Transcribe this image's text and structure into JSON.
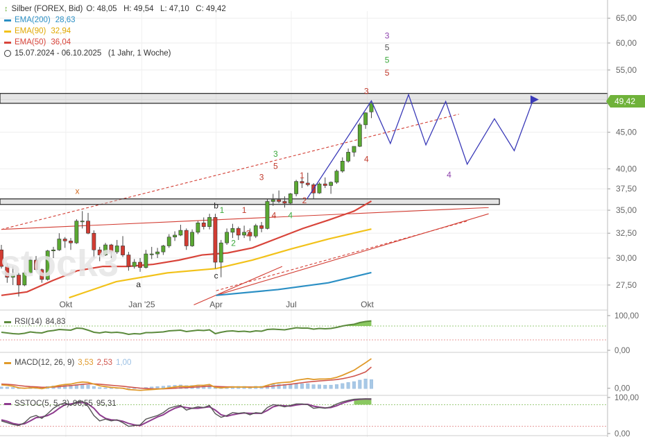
{
  "header": {
    "instrument": "Silber (FOREX, Bid)",
    "ohlc": "O: 48,05   H: 49,54   L: 47,10   C: 49,42",
    "ema200_label": "EMA(200)",
    "ema200_value": "28,63",
    "ema90_label": "EMA(90)",
    "ema90_value": "32,94",
    "ema50_label": "EMA(50)",
    "ema50_value": "36,04",
    "period": "15.07.2024 - 06.10.2025   (1 Jahr, 1 Woche)"
  },
  "current_price_tag": "49,42",
  "watermark": "stock3",
  "colors": {
    "up": "#5aa832",
    "down": "#d23c32",
    "ema200": "#2b8fc4",
    "ema90": "#f2c21a",
    "ema50": "#d8443a",
    "projection": "#3a3ab8",
    "rsi": "#5b8a3c",
    "macd": "#e09a2a",
    "signal": "#d0554c",
    "hist": "#a8c8e6",
    "stoch_k": "#555",
    "stoch_d": "#8e3c8e"
  },
  "axes": {
    "price_ticks": [
      "65,00",
      "60,00",
      "55,00",
      "50,00",
      "45,00",
      "40,00",
      "37,50",
      "35,00",
      "32,50",
      "30,00",
      "27,50"
    ],
    "x_ticks": [
      "Okt",
      "Jan '25",
      "Apr",
      "Jul",
      "Okt"
    ],
    "rsi_ticks": [
      "100,00",
      "0,00"
    ],
    "macd_ticks": [
      "0,00"
    ],
    "stoch_ticks": [
      "100,00",
      "0,00"
    ]
  },
  "indicators": {
    "rsi": {
      "label": "RSI(14)",
      "value": "84,83"
    },
    "macd": {
      "label": "MACD(12, 26, 9)",
      "v1": "3,53",
      "v2": "2,53",
      "v3": "1,00"
    },
    "stoch": {
      "label": "SSTOC(5, 5, 3)",
      "v1": "96,55",
      "v2": "95,31"
    }
  },
  "annotations": [
    {
      "text": "x",
      "x": "2024-10-15",
      "y": 36.9,
      "color": "#d2691e"
    },
    {
      "text": "b",
      "x": "2025-04-01",
      "y": 35.2,
      "color": "#222"
    },
    {
      "text": "a",
      "x": "2024-12-28",
      "y": 27.3,
      "color": "#222"
    },
    {
      "text": "c",
      "x": "2025-04-01",
      "y": 28.1,
      "color": "#222"
    },
    {
      "text": "1",
      "x": "2025-04-08",
      "y": 34.7,
      "color": "#3aa83a"
    },
    {
      "text": "2",
      "x": "2025-04-22",
      "y": 31.2,
      "color": "#3aa83a"
    },
    {
      "text": "3",
      "x": "2025-05-26",
      "y": 38.6,
      "color": "#c0392b"
    },
    {
      "text": "1",
      "x": "2025-05-05",
      "y": 34.7,
      "color": "#c0392b"
    },
    {
      "text": "2",
      "x": "2025-05-10",
      "y": 32.2,
      "color": "#c0392b"
    },
    {
      "text": "4",
      "x": "2025-06-10",
      "y": 34.1,
      "color": "#c0392b"
    },
    {
      "text": "5",
      "x": "2025-06-12",
      "y": 40.0,
      "color": "#c0392b"
    },
    {
      "text": "3",
      "x": "2025-06-12",
      "y": 41.6,
      "color": "#3aa83a"
    },
    {
      "text": "4",
      "x": "2025-06-30",
      "y": 34.1,
      "color": "#3aa83a"
    },
    {
      "text": "1",
      "x": "2025-07-14",
      "y": 38.8,
      "color": "#c0392b"
    },
    {
      "text": "2",
      "x": "2025-07-17",
      "y": 35.8,
      "color": "#c0392b"
    },
    {
      "text": "4",
      "x": "2025-09-30",
      "y": 40.9,
      "color": "#c0392b"
    },
    {
      "text": "3",
      "x": "2025-09-30",
      "y": 50.9,
      "color": "#c0392b"
    },
    {
      "text": "5",
      "x": "2025-10-25",
      "y": 54.0,
      "color": "#c0392b"
    },
    {
      "text": "5",
      "x": "2025-10-25",
      "y": 56.3,
      "color": "#3aa83a"
    },
    {
      "text": "5",
      "x": "2025-10-25",
      "y": 58.6,
      "color": "#555"
    },
    {
      "text": "3",
      "x": "2025-10-25",
      "y": 60.9,
      "color": "#8e44ad"
    },
    {
      "text": "4",
      "x": "2026-01-08",
      "y": 38.9,
      "color": "#8e44ad"
    }
  ],
  "chart_data": {
    "type": "candlestick",
    "title": "Silber (FOREX, Bid)",
    "y_scale": "log",
    "ylim": [
      26.0,
      66.5
    ],
    "x_range": [
      "2024-07-15",
      "2026-03-15"
    ],
    "candles": [
      {
        "d": "2024-07-15",
        "o": 30.8,
        "h": 31.3,
        "l": 29.0,
        "c": 29.2
      },
      {
        "d": "2024-07-22",
        "o": 29.2,
        "h": 29.5,
        "l": 27.7,
        "c": 28.2
      },
      {
        "d": "2024-07-29",
        "o": 28.2,
        "h": 29.2,
        "l": 27.5,
        "c": 28.4
      },
      {
        "d": "2024-08-05",
        "o": 28.4,
        "h": 28.6,
        "l": 26.5,
        "c": 27.5
      },
      {
        "d": "2024-08-12",
        "o": 27.5,
        "h": 28.8,
        "l": 27.4,
        "c": 28.6
      },
      {
        "d": "2024-08-19",
        "o": 28.6,
        "h": 30.1,
        "l": 28.5,
        "c": 29.8
      },
      {
        "d": "2024-08-26",
        "o": 29.8,
        "h": 30.2,
        "l": 28.8,
        "c": 28.9
      },
      {
        "d": "2024-09-02",
        "o": 28.9,
        "h": 29.0,
        "l": 27.7,
        "c": 28.0
      },
      {
        "d": "2024-09-09",
        "o": 28.0,
        "h": 30.8,
        "l": 27.9,
        "c": 30.7
      },
      {
        "d": "2024-09-16",
        "o": 30.7,
        "h": 31.1,
        "l": 30.0,
        "c": 30.8
      },
      {
        "d": "2024-09-23",
        "o": 30.8,
        "h": 32.5,
        "l": 30.7,
        "c": 31.9
      },
      {
        "d": "2024-09-30",
        "o": 31.9,
        "h": 32.1,
        "l": 31.0,
        "c": 31.7
      },
      {
        "d": "2024-10-07",
        "o": 31.7,
        "h": 32.0,
        "l": 30.8,
        "c": 31.5
      },
      {
        "d": "2024-10-14",
        "o": 31.5,
        "h": 34.0,
        "l": 31.4,
        "c": 33.8
      },
      {
        "d": "2024-10-21",
        "o": 33.8,
        "h": 34.9,
        "l": 33.0,
        "c": 33.8
      },
      {
        "d": "2024-10-28",
        "o": 33.8,
        "h": 34.7,
        "l": 32.4,
        "c": 32.5
      },
      {
        "d": "2024-11-04",
        "o": 32.5,
        "h": 32.8,
        "l": 30.0,
        "c": 30.8
      },
      {
        "d": "2024-11-11",
        "o": 30.8,
        "h": 31.1,
        "l": 29.7,
        "c": 30.3
      },
      {
        "d": "2024-11-18",
        "o": 30.3,
        "h": 31.5,
        "l": 30.2,
        "c": 31.3
      },
      {
        "d": "2024-11-25",
        "o": 31.3,
        "h": 31.4,
        "l": 30.0,
        "c": 30.6
      },
      {
        "d": "2024-12-02",
        "o": 30.6,
        "h": 31.8,
        "l": 30.4,
        "c": 31.2
      },
      {
        "d": "2024-12-09",
        "o": 31.2,
        "h": 32.2,
        "l": 30.1,
        "c": 30.3
      },
      {
        "d": "2024-12-16",
        "o": 30.3,
        "h": 30.6,
        "l": 28.8,
        "c": 29.2
      },
      {
        "d": "2024-12-23",
        "o": 29.2,
        "h": 29.9,
        "l": 29.0,
        "c": 29.6
      },
      {
        "d": "2024-12-30",
        "o": 29.6,
        "h": 30.0,
        "l": 28.7,
        "c": 29.1
      },
      {
        "d": "2025-01-06",
        "o": 29.1,
        "h": 30.8,
        "l": 29.0,
        "c": 30.4
      },
      {
        "d": "2025-01-13",
        "o": 30.4,
        "h": 31.1,
        "l": 29.9,
        "c": 30.4
      },
      {
        "d": "2025-01-20",
        "o": 30.4,
        "h": 31.0,
        "l": 30.0,
        "c": 30.6
      },
      {
        "d": "2025-01-27",
        "o": 30.6,
        "h": 31.3,
        "l": 30.3,
        "c": 31.2
      },
      {
        "d": "2025-02-03",
        "o": 31.2,
        "h": 32.4,
        "l": 31.0,
        "c": 32.1
      },
      {
        "d": "2025-02-10",
        "o": 32.1,
        "h": 32.7,
        "l": 31.7,
        "c": 32.3
      },
      {
        "d": "2025-02-17",
        "o": 32.3,
        "h": 33.4,
        "l": 32.2,
        "c": 32.8
      },
      {
        "d": "2025-02-24",
        "o": 32.8,
        "h": 33.0,
        "l": 30.8,
        "c": 31.2
      },
      {
        "d": "2025-03-03",
        "o": 31.2,
        "h": 32.9,
        "l": 31.1,
        "c": 32.6
      },
      {
        "d": "2025-03-10",
        "o": 32.6,
        "h": 33.8,
        "l": 32.4,
        "c": 33.6
      },
      {
        "d": "2025-03-17",
        "o": 33.6,
        "h": 34.2,
        "l": 32.9,
        "c": 33.2
      },
      {
        "d": "2025-03-24",
        "o": 33.2,
        "h": 34.6,
        "l": 32.9,
        "c": 34.2
      },
      {
        "d": "2025-03-31",
        "o": 34.2,
        "h": 34.6,
        "l": 29.0,
        "c": 29.6
      },
      {
        "d": "2025-04-07",
        "o": 29.6,
        "h": 31.8,
        "l": 28.2,
        "c": 31.5
      },
      {
        "d": "2025-04-14",
        "o": 31.5,
        "h": 33.0,
        "l": 31.3,
        "c": 32.6
      },
      {
        "d": "2025-04-21",
        "o": 32.6,
        "h": 33.5,
        "l": 32.0,
        "c": 33.0
      },
      {
        "d": "2025-04-28",
        "o": 33.0,
        "h": 33.2,
        "l": 31.8,
        "c": 32.3
      },
      {
        "d": "2025-05-05",
        "o": 32.3,
        "h": 33.3,
        "l": 32.0,
        "c": 32.6
      },
      {
        "d": "2025-05-12",
        "o": 32.6,
        "h": 33.0,
        "l": 31.7,
        "c": 32.2
      },
      {
        "d": "2025-05-19",
        "o": 32.2,
        "h": 33.5,
        "l": 32.0,
        "c": 33.3
      },
      {
        "d": "2025-05-26",
        "o": 33.3,
        "h": 33.7,
        "l": 32.6,
        "c": 33.0
      },
      {
        "d": "2025-06-02",
        "o": 33.0,
        "h": 36.3,
        "l": 32.9,
        "c": 36.0
      },
      {
        "d": "2025-06-09",
        "o": 36.0,
        "h": 36.9,
        "l": 35.5,
        "c": 36.2
      },
      {
        "d": "2025-06-16",
        "o": 36.2,
        "h": 37.3,
        "l": 35.8,
        "c": 36.0
      },
      {
        "d": "2025-06-23",
        "o": 36.0,
        "h": 36.6,
        "l": 35.3,
        "c": 35.8
      },
      {
        "d": "2025-06-30",
        "o": 35.8,
        "h": 37.0,
        "l": 35.6,
        "c": 36.9
      },
      {
        "d": "2025-07-07",
        "o": 36.9,
        "h": 38.6,
        "l": 36.6,
        "c": 38.4
      },
      {
        "d": "2025-07-14",
        "o": 38.4,
        "h": 38.8,
        "l": 37.6,
        "c": 38.2
      },
      {
        "d": "2025-07-21",
        "o": 38.2,
        "h": 39.5,
        "l": 37.8,
        "c": 38.0
      },
      {
        "d": "2025-07-28",
        "o": 38.0,
        "h": 38.2,
        "l": 36.3,
        "c": 37.0
      },
      {
        "d": "2025-08-04",
        "o": 37.0,
        "h": 38.3,
        "l": 36.9,
        "c": 38.1
      },
      {
        "d": "2025-08-11",
        "o": 38.1,
        "h": 38.9,
        "l": 37.6,
        "c": 37.9
      },
      {
        "d": "2025-08-18",
        "o": 37.9,
        "h": 38.4,
        "l": 36.9,
        "c": 38.3
      },
      {
        "d": "2025-08-25",
        "o": 38.3,
        "h": 39.9,
        "l": 38.1,
        "c": 39.7
      },
      {
        "d": "2025-09-01",
        "o": 39.7,
        "h": 41.5,
        "l": 39.5,
        "c": 41.0
      },
      {
        "d": "2025-09-08",
        "o": 41.0,
        "h": 42.7,
        "l": 40.8,
        "c": 42.2
      },
      {
        "d": "2025-09-15",
        "o": 42.2,
        "h": 43.0,
        "l": 41.6,
        "c": 43.0
      },
      {
        "d": "2025-09-22",
        "o": 43.0,
        "h": 46.4,
        "l": 42.9,
        "c": 46.1
      },
      {
        "d": "2025-09-29",
        "o": 46.1,
        "h": 48.0,
        "l": 45.5,
        "c": 47.9
      },
      {
        "d": "2025-10-06",
        "o": 48.05,
        "h": 49.54,
        "l": 47.1,
        "c": 49.42
      }
    ],
    "ema200": [
      [
        "2025-04-01",
        26.6
      ],
      [
        "2025-06-15",
        27.1
      ],
      [
        "2025-08-15",
        27.7
      ],
      [
        "2025-10-06",
        28.63
      ]
    ],
    "ema90": [
      [
        "2024-10-05",
        26.4
      ],
      [
        "2024-12-01",
        27.8
      ],
      [
        "2025-02-01",
        28.6
      ],
      [
        "2025-04-01",
        29.0
      ],
      [
        "2025-05-15",
        29.8
      ],
      [
        "2025-07-01",
        30.9
      ],
      [
        "2025-08-15",
        31.9
      ],
      [
        "2025-10-06",
        32.94
      ]
    ],
    "ema50": [
      [
        "2024-07-15",
        26.6
      ],
      [
        "2024-08-15",
        26.9
      ],
      [
        "2024-09-15",
        27.9
      ],
      [
        "2024-10-15",
        28.8
      ],
      [
        "2024-11-15",
        29.2
      ],
      [
        "2024-12-15",
        29.2
      ],
      [
        "2025-01-15",
        29.4
      ],
      [
        "2025-02-15",
        29.8
      ],
      [
        "2025-03-15",
        30.3
      ],
      [
        "2025-04-15",
        30.5
      ],
      [
        "2025-05-15",
        31.0
      ],
      [
        "2025-06-15",
        32.0
      ],
      [
        "2025-07-15",
        33.0
      ],
      [
        "2025-08-15",
        33.9
      ],
      [
        "2025-09-15",
        34.9
      ],
      [
        "2025-10-06",
        36.04
      ]
    ],
    "zones": [
      [
        49.4,
        51.0
      ],
      [
        35.8,
        36.3
      ]
    ],
    "trendlines": [
      {
        "from": [
          "2024-07-15",
          32.9
        ],
        "to": [
          "2026-02-25",
          35.3
        ],
        "color": "#d23c32",
        "dashed": false,
        "visible_from": [
          "2025-04-01",
          26.6
        ]
      },
      {
        "from": [
          "2025-04-01",
          26.6
        ],
        "to": [
          "2026-02-25",
          34.6
        ],
        "color": "#d23c32",
        "dashed": false
      },
      {
        "from": [
          "2025-04-01",
          27.0
        ],
        "to": [
          "2026-01-30",
          33.8
        ],
        "color": "#d23c32",
        "dashed": true
      },
      {
        "from": [
          "2024-07-15",
          32.9
        ],
        "to": [
          "2026-01-20",
          47.7
        ],
        "color": "#d23c32",
        "dashed": true
      },
      {
        "from": [
          "2025-03-05",
          25.8
        ],
        "to": [
          "2025-06-20",
          29.2
        ],
        "color": "#d23c32",
        "dashed": false
      }
    ],
    "projection": [
      [
        "2025-07-20",
        36.3
      ],
      [
        "2025-10-06",
        49.8
      ],
      [
        "2025-10-29",
        43.4
      ],
      [
        "2025-11-20",
        50.8
      ],
      [
        "2025-12-11",
        43.2
      ],
      [
        "2026-01-04",
        49.7
      ],
      [
        "2026-01-30",
        40.6
      ],
      [
        "2026-03-04",
        47.0
      ],
      [
        "2026-03-28",
        42.4
      ],
      [
        "2026-04-20",
        50.0
      ]
    ],
    "rsi": [
      52,
      50,
      48,
      47,
      49,
      53,
      51,
      50,
      55,
      57,
      60,
      59,
      58,
      64,
      63,
      58,
      52,
      50,
      53,
      51,
      52,
      50,
      46,
      48,
      47,
      51,
      51,
      52,
      53,
      56,
      57,
      58,
      54,
      56,
      58,
      57,
      59,
      48,
      52,
      55,
      56,
      54,
      55,
      53,
      56,
      55,
      60,
      61,
      60,
      59,
      62,
      65,
      64,
      64,
      61,
      63,
      62,
      63,
      66,
      70,
      73,
      75,
      80,
      83,
      84.83
    ],
    "macd": [
      0.4,
      0.35,
      0.25,
      0.05,
      0.0,
      0.05,
      0.05,
      -0.05,
      0.1,
      0.2,
      0.35,
      0.45,
      0.5,
      0.65,
      0.75,
      0.7,
      0.5,
      0.3,
      0.2,
      0.1,
      0.05,
      0.0,
      -0.15,
      -0.2,
      -0.25,
      -0.2,
      -0.15,
      -0.1,
      -0.05,
      0.05,
      0.15,
      0.25,
      0.2,
      0.25,
      0.35,
      0.35,
      0.45,
      0.1,
      0.05,
      0.1,
      0.15,
      0.15,
      0.15,
      0.1,
      0.15,
      0.15,
      0.35,
      0.55,
      0.65,
      0.7,
      0.75,
      0.95,
      1.05,
      1.15,
      1.05,
      1.1,
      1.1,
      1.15,
      1.3,
      1.55,
      1.85,
      2.15,
      2.6,
      3.05,
      3.53
    ],
    "signal": [
      0.5,
      0.47,
      0.42,
      0.33,
      0.25,
      0.2,
      0.17,
      0.12,
      0.12,
      0.14,
      0.2,
      0.26,
      0.32,
      0.4,
      0.47,
      0.52,
      0.52,
      0.48,
      0.42,
      0.36,
      0.3,
      0.24,
      0.16,
      0.09,
      0.02,
      -0.03,
      -0.06,
      -0.07,
      -0.07,
      -0.04,
      0.0,
      0.05,
      0.08,
      0.12,
      0.16,
      0.2,
      0.25,
      0.22,
      0.19,
      0.17,
      0.17,
      0.16,
      0.16,
      0.15,
      0.15,
      0.15,
      0.19,
      0.26,
      0.34,
      0.41,
      0.48,
      0.57,
      0.66,
      0.75,
      0.81,
      0.87,
      0.92,
      0.97,
      1.04,
      1.14,
      1.28,
      1.45,
      1.68,
      1.95,
      2.53
    ],
    "stoch_k": [
      35,
      30,
      25,
      22,
      30,
      45,
      50,
      42,
      55,
      70,
      80,
      85,
      78,
      88,
      90,
      75,
      50,
      35,
      40,
      35,
      38,
      30,
      20,
      22,
      24,
      40,
      45,
      50,
      58,
      70,
      75,
      78,
      65,
      70,
      74,
      72,
      78,
      55,
      45,
      50,
      58,
      56,
      58,
      52,
      58,
      56,
      72,
      80,
      78,
      74,
      78,
      82,
      82,
      80,
      70,
      72,
      70,
      74,
      82,
      88,
      92,
      95,
      96,
      96,
      96.55
    ],
    "stoch_d": [
      38,
      34,
      28,
      25,
      27,
      35,
      44,
      46,
      50,
      58,
      70,
      80,
      82,
      85,
      86,
      82,
      70,
      52,
      42,
      38,
      37,
      34,
      28,
      24,
      22,
      30,
      38,
      46,
      52,
      62,
      70,
      75,
      72,
      70,
      70,
      72,
      74,
      65,
      52,
      48,
      52,
      55,
      57,
      56,
      56,
      56,
      64,
      74,
      78,
      77,
      76,
      79,
      81,
      81,
      76,
      73,
      71,
      72,
      77,
      84,
      89,
      93,
      95,
      96,
      95.31
    ]
  }
}
